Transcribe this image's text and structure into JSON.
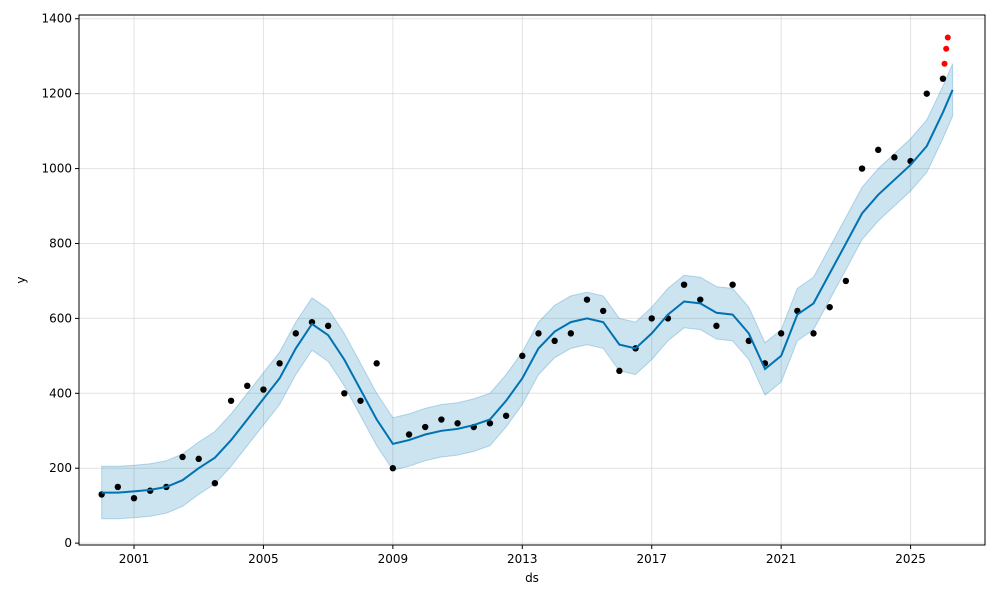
{
  "chart_data": {
    "type": "line",
    "title": "",
    "xlabel": "ds",
    "ylabel": "y",
    "xlim": [
      1999.3,
      2027.3
    ],
    "ylim": [
      -5,
      1410
    ],
    "x_ticks": [
      2001,
      2005,
      2009,
      2013,
      2017,
      2021,
      2025
    ],
    "x_tick_labels": [
      "2001",
      "2005",
      "2009",
      "2013",
      "2017",
      "2021",
      "2025"
    ],
    "y_ticks": [
      0,
      200,
      400,
      600,
      800,
      1000,
      1200,
      1400
    ],
    "y_tick_labels": [
      "0",
      "200",
      "400",
      "600",
      "800",
      "1000",
      "1200",
      "1400"
    ],
    "grid": true,
    "colors": {
      "forecast": "#0072B2",
      "interval_fill": "#0072B2",
      "observed": "#000000",
      "test": "#ff0000",
      "grid": "#cccccc",
      "axis": "#000000"
    },
    "series": [
      {
        "key": "forecast",
        "kind": "line",
        "x": [
          2000.0,
          2000.5,
          2001.0,
          2001.5,
          2002.0,
          2002.5,
          2003.0,
          2003.5,
          2004.0,
          2004.5,
          2005.0,
          2005.5,
          2006.0,
          2006.5,
          2007.0,
          2007.5,
          2008.0,
          2008.5,
          2009.0,
          2009.5,
          2010.0,
          2010.5,
          2011.0,
          2011.5,
          2012.0,
          2012.5,
          2013.0,
          2013.5,
          2014.0,
          2014.5,
          2015.0,
          2015.5,
          2016.0,
          2016.5,
          2017.0,
          2017.5,
          2018.0,
          2018.5,
          2019.0,
          2019.5,
          2020.0,
          2020.5,
          2021.0,
          2021.5,
          2022.0,
          2022.5,
          2023.0,
          2023.5,
          2024.0,
          2024.5,
          2025.0,
          2025.5,
          2026.0,
          2026.3
        ],
        "y": [
          135,
          135,
          138,
          142,
          150,
          168,
          200,
          228,
          275,
          330,
          385,
          440,
          520,
          585,
          555,
          490,
          410,
          330,
          265,
          275,
          290,
          300,
          305,
          315,
          330,
          380,
          440,
          520,
          565,
          590,
          600,
          590,
          530,
          520,
          560,
          610,
          645,
          640,
          615,
          610,
          560,
          465,
          500,
          610,
          640,
          720,
          800,
          880,
          930,
          970,
          1010,
          1060,
          1150,
          1210
        ]
      },
      {
        "key": "interval_upper",
        "kind": "band",
        "x": [
          2000.0,
          2000.5,
          2001.0,
          2001.5,
          2002.0,
          2002.5,
          2003.0,
          2003.5,
          2004.0,
          2004.5,
          2005.0,
          2005.5,
          2006.0,
          2006.5,
          2007.0,
          2007.5,
          2008.0,
          2008.5,
          2009.0,
          2009.5,
          2010.0,
          2010.5,
          2011.0,
          2011.5,
          2012.0,
          2012.5,
          2013.0,
          2013.5,
          2014.0,
          2014.5,
          2015.0,
          2015.5,
          2016.0,
          2016.5,
          2017.0,
          2017.5,
          2018.0,
          2018.5,
          2019.0,
          2019.5,
          2020.0,
          2020.5,
          2021.0,
          2021.5,
          2022.0,
          2022.5,
          2023.0,
          2023.5,
          2024.0,
          2024.5,
          2025.0,
          2025.5,
          2026.0,
          2026.3
        ],
        "y": [
          205,
          205,
          208,
          212,
          220,
          238,
          270,
          298,
          345,
          400,
          455,
          510,
          590,
          655,
          625,
          560,
          480,
          400,
          335,
          345,
          360,
          370,
          375,
          385,
          400,
          450,
          510,
          590,
          635,
          660,
          670,
          660,
          600,
          590,
          630,
          680,
          715,
          710,
          685,
          680,
          630,
          535,
          570,
          680,
          710,
          790,
          870,
          950,
          1000,
          1040,
          1080,
          1130,
          1220,
          1280
        ]
      },
      {
        "key": "interval_lower",
        "kind": "band",
        "x": [
          2000.0,
          2000.5,
          2001.0,
          2001.5,
          2002.0,
          2002.5,
          2003.0,
          2003.5,
          2004.0,
          2004.5,
          2005.0,
          2005.5,
          2006.0,
          2006.5,
          2007.0,
          2007.5,
          2008.0,
          2008.5,
          2009.0,
          2009.5,
          2010.0,
          2010.5,
          2011.0,
          2011.5,
          2012.0,
          2012.5,
          2013.0,
          2013.5,
          2014.0,
          2014.5,
          2015.0,
          2015.5,
          2016.0,
          2016.5,
          2017.0,
          2017.5,
          2018.0,
          2018.5,
          2019.0,
          2019.5,
          2020.0,
          2020.5,
          2021.0,
          2021.5,
          2022.0,
          2022.5,
          2023.0,
          2023.5,
          2024.0,
          2024.5,
          2025.0,
          2025.5,
          2026.0,
          2026.3
        ],
        "y": [
          65,
          65,
          68,
          72,
          80,
          98,
          130,
          158,
          205,
          260,
          315,
          370,
          450,
          515,
          485,
          420,
          340,
          260,
          195,
          205,
          220,
          230,
          235,
          245,
          260,
          310,
          370,
          450,
          495,
          520,
          530,
          520,
          460,
          450,
          490,
          540,
          575,
          570,
          545,
          540,
          490,
          395,
          430,
          540,
          570,
          650,
          730,
          810,
          860,
          900,
          940,
          990,
          1080,
          1140
        ]
      },
      {
        "key": "observed",
        "kind": "scatter",
        "x": [
          2000.0,
          2000.5,
          2001.0,
          2001.5,
          2002.0,
          2002.5,
          2003.0,
          2003.5,
          2004.0,
          2004.5,
          2005.0,
          2005.5,
          2006.0,
          2006.5,
          2007.0,
          2007.5,
          2008.0,
          2008.5,
          2009.0,
          2009.5,
          2010.0,
          2010.5,
          2011.0,
          2011.5,
          2012.0,
          2012.5,
          2013.0,
          2013.5,
          2014.0,
          2014.5,
          2015.0,
          2015.5,
          2016.0,
          2016.5,
          2017.0,
          2017.5,
          2018.0,
          2018.5,
          2019.0,
          2019.5,
          2020.0,
          2020.5,
          2021.0,
          2021.5,
          2022.0,
          2022.5,
          2023.0,
          2023.5,
          2024.0,
          2024.5,
          2025.0,
          2025.5,
          2026.0
        ],
        "y": [
          130,
          150,
          120,
          140,
          150,
          230,
          225,
          160,
          380,
          420,
          410,
          480,
          560,
          590,
          580,
          400,
          380,
          480,
          200,
          290,
          310,
          330,
          320,
          310,
          320,
          340,
          500,
          560,
          540,
          560,
          650,
          620,
          460,
          520,
          600,
          600,
          690,
          650,
          580,
          690,
          540,
          480,
          560,
          620,
          560,
          630,
          700,
          1000,
          1050,
          1030,
          1020,
          1200,
          1240
        ]
      },
      {
        "key": "test",
        "kind": "scatter",
        "x": [
          2026.05,
          2026.1,
          2026.15
        ],
        "y": [
          1280,
          1320,
          1350
        ]
      }
    ]
  }
}
